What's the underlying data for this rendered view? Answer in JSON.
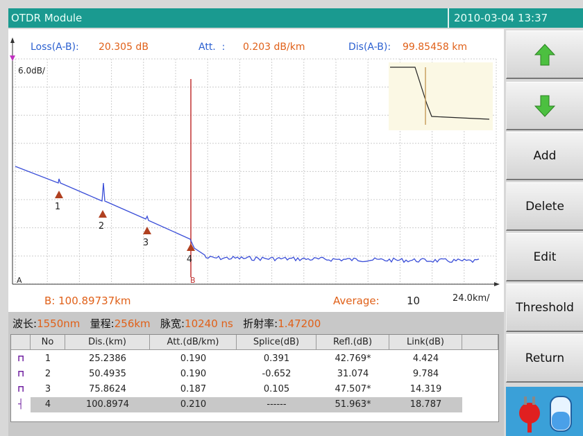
{
  "header": {
    "title": "OTDR Module",
    "datetime": "2010-03-04  13:37"
  },
  "chart": {
    "loss": {
      "label": "Loss(A-B):",
      "value": "20.305 dB"
    },
    "att": {
      "label": "Att.  :",
      "value": "0.203 dB/km"
    },
    "dis": {
      "label": "Dis(A-B):",
      "value": "99.85458 km"
    },
    "y_scale": "6.0dB/",
    "x_scale": "24.0km/",
    "cursor_a": "A",
    "cursor_b": "B",
    "b_position": "B: 100.89737km",
    "average": {
      "label": "Average:",
      "value": "10"
    },
    "events": [
      "1",
      "2",
      "3",
      "4"
    ]
  },
  "info": [
    {
      "label": "波长:",
      "value": "1550nm"
    },
    {
      "label": "量程:",
      "value": "256km"
    },
    {
      "label": "脉宽:",
      "value": "10240 ns"
    },
    {
      "label": "折射率:",
      "value": "1.47200"
    }
  ],
  "table": {
    "columns": [
      "No",
      "Dis.(km)",
      "Att.(dB/km)",
      "Splice(dB)",
      "Refl.(dB)",
      "Link(dB)"
    ],
    "rows": [
      [
        "1",
        "25.2386",
        "0.190",
        "0.391",
        "42.769*",
        "4.424"
      ],
      [
        "2",
        "50.4935",
        "0.190",
        "-0.652",
        "31.074",
        "9.784"
      ],
      [
        "3",
        "75.8624",
        "0.187",
        "0.105",
        "47.507*",
        "14.319"
      ],
      [
        "4",
        "100.8974",
        "0.210",
        "------",
        "51.963*",
        "18.787"
      ]
    ]
  },
  "buttons": [
    "Add",
    "Delete",
    "Edit",
    "Threshold",
    "Return"
  ]
}
